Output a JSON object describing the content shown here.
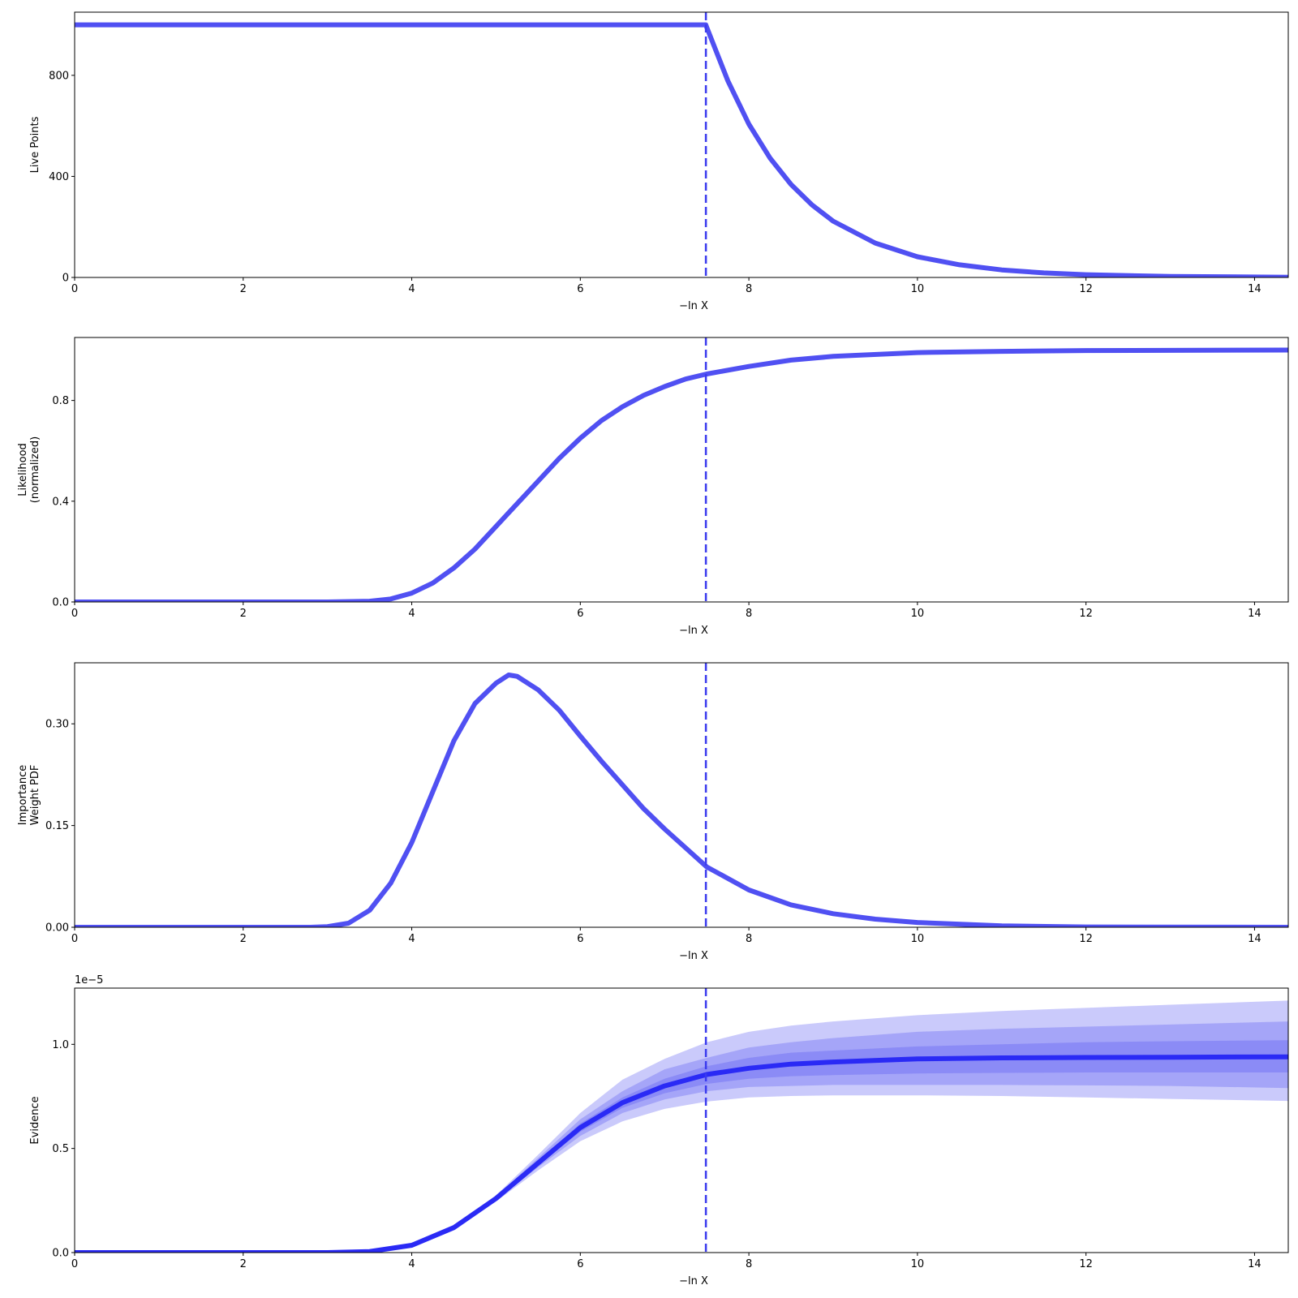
{
  "colors": {
    "line": "#5050f2",
    "evidence_line": "#2a2af5",
    "marker": "#3b3bee",
    "band": "#5050f2",
    "band_opacities": [
      0.3,
      0.3,
      0.3
    ]
  },
  "chart_data": [
    {
      "type": "line",
      "title": "",
      "xlabel": "−ln X",
      "ylabel": "Live Points",
      "xlim": [
        0,
        14.4
      ],
      "ylim": [
        0,
        1050
      ],
      "xticks": [
        0,
        2,
        4,
        6,
        8,
        10,
        12,
        14
      ],
      "xtick_labels": [
        "0",
        "2",
        "4",
        "6",
        "8",
        "10",
        "12",
        "14"
      ],
      "yticks": [
        0,
        400,
        800
      ],
      "ytick_labels": [
        "0",
        "400",
        "800"
      ],
      "marker_x": 7.49,
      "grid": false,
      "series": [
        {
          "x": [
            0,
            7.49,
            7.5,
            7.75,
            8.0,
            8.25,
            8.5,
            8.75,
            9.0,
            9.5,
            10.0,
            10.5,
            11.0,
            11.5,
            12.0,
            13.0,
            14.4
          ],
          "y": [
            1000,
            1000,
            990,
            779,
            607,
            473,
            368,
            287,
            223,
            136,
            82,
            50,
            30,
            18,
            11,
            4,
            1
          ]
        }
      ]
    },
    {
      "type": "line",
      "title": "",
      "xlabel": "−ln X",
      "ylabel": "Likelihood\n(normalized)",
      "xlim": [
        0,
        14.4
      ],
      "ylim": [
        0,
        1.05
      ],
      "xticks": [
        0,
        2,
        4,
        6,
        8,
        10,
        12,
        14
      ],
      "xtick_labels": [
        "0",
        "2",
        "4",
        "6",
        "8",
        "10",
        "12",
        "14"
      ],
      "yticks": [
        0,
        0.4,
        0.8
      ],
      "ytick_labels": [
        "0.0",
        "0.4",
        "0.8"
      ],
      "marker_x": 7.49,
      "grid": false,
      "series": [
        {
          "x": [
            0,
            3.0,
            3.5,
            3.75,
            4.0,
            4.25,
            4.5,
            4.75,
            5.0,
            5.25,
            5.5,
            5.75,
            6.0,
            6.25,
            6.5,
            6.75,
            7.0,
            7.25,
            7.5,
            8.0,
            8.5,
            9.0,
            10.0,
            11.0,
            12.0,
            14.4
          ],
          "y": [
            0,
            0,
            0.003,
            0.012,
            0.035,
            0.075,
            0.135,
            0.21,
            0.3,
            0.39,
            0.48,
            0.57,
            0.65,
            0.72,
            0.775,
            0.82,
            0.855,
            0.885,
            0.905,
            0.935,
            0.96,
            0.975,
            0.99,
            0.995,
            0.998,
            1.0
          ]
        }
      ]
    },
    {
      "type": "line",
      "title": "",
      "xlabel": "−ln X",
      "ylabel": "Importance\nWeight PDF",
      "xlim": [
        0,
        14.4
      ],
      "ylim": [
        0,
        0.39
      ],
      "xticks": [
        0,
        2,
        4,
        6,
        8,
        10,
        12,
        14
      ],
      "xtick_labels": [
        "0",
        "2",
        "4",
        "6",
        "8",
        "10",
        "12",
        "14"
      ],
      "yticks": [
        0,
        0.15,
        0.3
      ],
      "ytick_labels": [
        "0.00",
        "0.15",
        "0.30"
      ],
      "marker_x": 7.49,
      "grid": false,
      "series": [
        {
          "x": [
            0,
            2.8,
            3.0,
            3.25,
            3.5,
            3.75,
            4.0,
            4.25,
            4.5,
            4.75,
            5.0,
            5.15,
            5.25,
            5.5,
            5.75,
            6.0,
            6.25,
            6.5,
            6.75,
            7.0,
            7.25,
            7.5,
            8.0,
            8.5,
            9.0,
            9.5,
            10.0,
            11.0,
            12.0,
            14.4
          ],
          "y": [
            0,
            0,
            0.001,
            0.006,
            0.025,
            0.065,
            0.125,
            0.2,
            0.275,
            0.33,
            0.36,
            0.372,
            0.37,
            0.35,
            0.32,
            0.282,
            0.245,
            0.21,
            0.175,
            0.145,
            0.117,
            0.089,
            0.055,
            0.033,
            0.02,
            0.012,
            0.007,
            0.002,
            0.0005,
            0
          ]
        }
      ]
    },
    {
      "type": "area",
      "title": "",
      "xlabel": "−ln X",
      "ylabel": "Evidence",
      "y_scale_label": "1e−5",
      "xlim": [
        0,
        14.4
      ],
      "ylim": [
        0,
        1.27
      ],
      "xticks": [
        0,
        2,
        4,
        6,
        8,
        10,
        12,
        14
      ],
      "xtick_labels": [
        "0",
        "2",
        "4",
        "6",
        "8",
        "10",
        "12",
        "14"
      ],
      "yticks": [
        0,
        0.5,
        1.0
      ],
      "ytick_labels": [
        "0.0",
        "0.5",
        "1.0"
      ],
      "marker_x": 7.49,
      "grid": false,
      "x": [
        0,
        3.0,
        3.5,
        4.0,
        4.5,
        5.0,
        5.5,
        6.0,
        6.5,
        7.0,
        7.5,
        8.0,
        8.5,
        9.0,
        10.0,
        11.0,
        12.0,
        13.0,
        14.4
      ],
      "mean": [
        0,
        0,
        0.005,
        0.035,
        0.12,
        0.26,
        0.43,
        0.6,
        0.72,
        0.8,
        0.855,
        0.885,
        0.905,
        0.915,
        0.93,
        0.935,
        0.937,
        0.938,
        0.94
      ],
      "bands": [
        {
          "lower": [
            0,
            0,
            0.005,
            0.034,
            0.115,
            0.245,
            0.395,
            0.535,
            0.63,
            0.69,
            0.725,
            0.745,
            0.752,
            0.755,
            0.755,
            0.752,
            0.745,
            0.738,
            0.728
          ],
          "upper": [
            0,
            0,
            0.005,
            0.036,
            0.125,
            0.275,
            0.47,
            0.67,
            0.83,
            0.93,
            1.01,
            1.06,
            1.09,
            1.11,
            1.14,
            1.16,
            1.175,
            1.19,
            1.21
          ]
        },
        {
          "lower": [
            0,
            0,
            0.005,
            0.034,
            0.118,
            0.25,
            0.41,
            0.56,
            0.67,
            0.735,
            0.775,
            0.795,
            0.8,
            0.805,
            0.805,
            0.805,
            0.803,
            0.8,
            0.79
          ],
          "upper": [
            0,
            0,
            0.005,
            0.036,
            0.122,
            0.27,
            0.455,
            0.64,
            0.775,
            0.88,
            0.935,
            0.985,
            1.01,
            1.03,
            1.06,
            1.075,
            1.085,
            1.095,
            1.11
          ]
        },
        {
          "lower": [
            0,
            0,
            0.005,
            0.035,
            0.119,
            0.255,
            0.42,
            0.58,
            0.695,
            0.765,
            0.81,
            0.835,
            0.847,
            0.852,
            0.86,
            0.863,
            0.865,
            0.865,
            0.865
          ],
          "upper": [
            0,
            0,
            0.005,
            0.035,
            0.121,
            0.265,
            0.44,
            0.62,
            0.745,
            0.835,
            0.895,
            0.935,
            0.96,
            0.97,
            0.99,
            1.0,
            1.01,
            1.015,
            1.02
          ]
        }
      ]
    }
  ]
}
